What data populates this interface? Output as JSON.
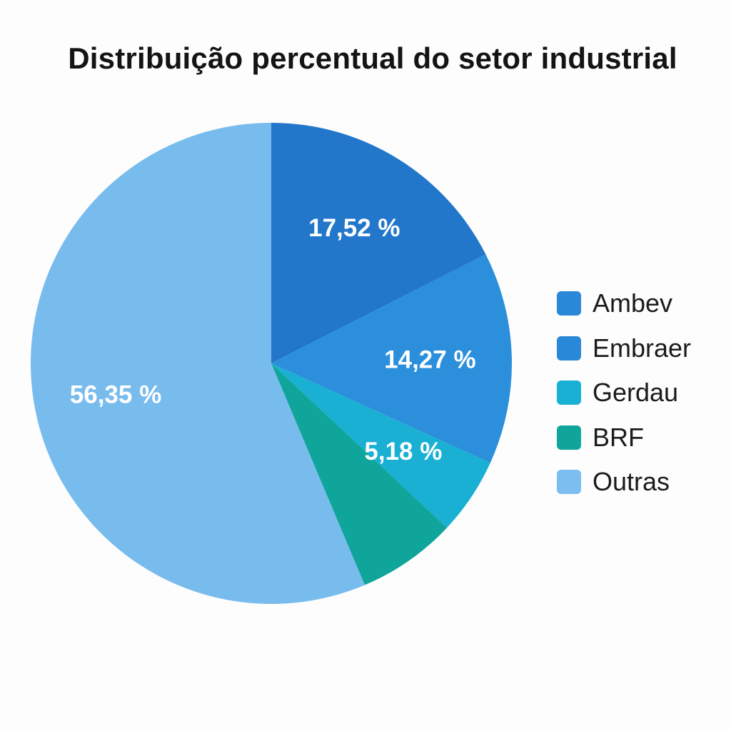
{
  "chart_data": {
    "type": "pie",
    "title": "Distribuição percentual do setor industrial",
    "legend_position": "right",
    "slices": [
      {
        "name": "Ambev",
        "value": 17.52,
        "label": "17,52 %",
        "color": "#2277cb"
      },
      {
        "name": "Embraer",
        "value": 14.27,
        "label": "14,27 %",
        "color": "#2b8fdc"
      },
      {
        "name": "Gerdau",
        "value": 5.18,
        "label": "5,18 %",
        "color": "#19b0d4"
      },
      {
        "name": "BRF",
        "value": 6.68,
        "label": "",
        "color": "#0fa59a"
      },
      {
        "name": "Outras",
        "value": 56.35,
        "label": "56,35 %",
        "color": "#78bcee"
      }
    ],
    "legend": [
      {
        "label": "Ambev",
        "color": "#2a88d8"
      },
      {
        "label": "Embraer",
        "color": "#2a88d8"
      },
      {
        "label": "Gerdau",
        "color": "#19b0d4"
      },
      {
        "label": "BRF",
        "color": "#0fa59a"
      },
      {
        "label": "Outras",
        "color": "#7dbef0"
      }
    ]
  }
}
